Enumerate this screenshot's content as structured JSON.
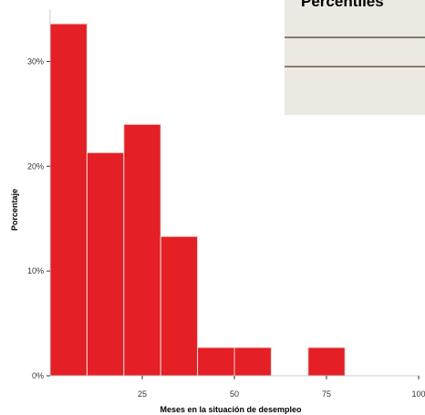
{
  "chart_data": {
    "type": "bar",
    "bins": [
      {
        "from": 0,
        "to": 10,
        "value": 33.6
      },
      {
        "from": 10,
        "to": 20,
        "value": 21.3
      },
      {
        "from": 20,
        "to": 30,
        "value": 24.0
      },
      {
        "from": 30,
        "to": 40,
        "value": 13.3
      },
      {
        "from": 40,
        "to": 50,
        "value": 2.7
      },
      {
        "from": 50,
        "to": 60,
        "value": 2.7
      },
      {
        "from": 60,
        "to": 70,
        "value": 0
      },
      {
        "from": 70,
        "to": 80,
        "value": 2.7
      }
    ],
    "xlabel": "Meses en la situación de desempleo",
    "ylabel": "Porcentaje",
    "xlim": [
      0,
      100
    ],
    "ylim": [
      0,
      35
    ],
    "xticks": [
      {
        "value": 25,
        "label": "25"
      },
      {
        "value": 50,
        "label": "50"
      },
      {
        "value": 75,
        "label": "75"
      },
      {
        "value": 100,
        "label": "100"
      }
    ],
    "yticks": [
      {
        "value": 0,
        "label": "0%"
      },
      {
        "value": 10,
        "label": "10%"
      },
      {
        "value": 20,
        "label": "20%"
      },
      {
        "value": 30,
        "label": "30%"
      }
    ],
    "grid": false,
    "legend": "none",
    "colors": {
      "bar": "#e41f26",
      "bar_edge": "#f0d8d0",
      "axis": "#cccccc"
    }
  },
  "overlay_table": {
    "title": "Percentiles"
  }
}
